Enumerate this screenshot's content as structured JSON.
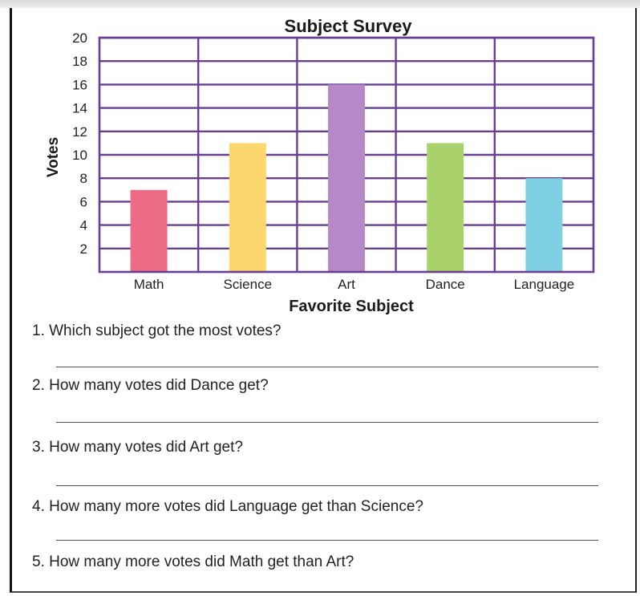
{
  "chart_data": {
    "type": "bar",
    "title": "Subject Survey",
    "xlabel": "Favorite Subject",
    "ylabel": "Votes",
    "categories": [
      "Math",
      "Science",
      "Art",
      "Dance",
      "Language"
    ],
    "values": [
      7,
      11,
      16,
      11,
      8
    ],
    "ylim": [
      0,
      20
    ],
    "yticks": [
      2,
      4,
      6,
      8,
      10,
      12,
      14,
      16,
      18,
      20
    ],
    "grid": true,
    "colors": [
      "#ec6b86",
      "#fbd76e",
      "#b68ac8",
      "#a9d26c",
      "#7fd0e2"
    ],
    "grid_color": "#6a3f8f"
  },
  "questions": [
    "1. Which subject got the most votes?",
    "2. How many votes did Dance get?",
    "3. How many votes did Art get?",
    "4. How many more votes did Language get than Science?",
    "5. How many more votes did Math get than Art?"
  ]
}
